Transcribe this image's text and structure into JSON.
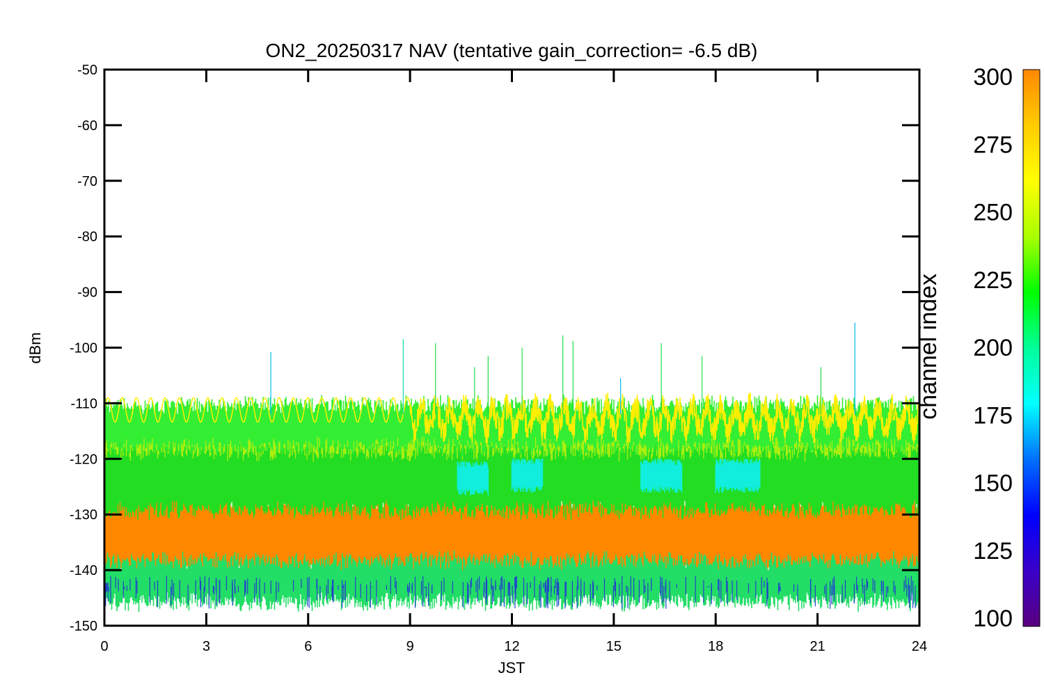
{
  "chart_data": {
    "type": "line",
    "title": "ON2_20250317 NAV (tentative gain_correction= -6.5 dB)",
    "xlabel": "JST",
    "ylabel": "dBm",
    "xlim": [
      0,
      24
    ],
    "ylim": [
      -150,
      -50
    ],
    "xticks": [
      0,
      3,
      6,
      9,
      12,
      15,
      18,
      21,
      24
    ],
    "xtick_labels": [
      "0",
      "3",
      "6",
      "9",
      "12",
      "15",
      "18",
      "21",
      "24"
    ],
    "yticks": [
      -50,
      -60,
      -70,
      -80,
      -90,
      -100,
      -110,
      -120,
      -130,
      -140,
      -150
    ],
    "ytick_labels": [
      "-50",
      "-60",
      "-70",
      "-80",
      "-90",
      "-100",
      "-110",
      "-120",
      "-130",
      "-140",
      "-150"
    ],
    "colorbar": {
      "label": "channel index",
      "range": [
        100,
        300
      ],
      "ticks": [
        300,
        275,
        250,
        225,
        200,
        175,
        150,
        125,
        100
      ],
      "tick_labels": [
        "300",
        "275",
        "250",
        "225",
        "200",
        "175",
        "150",
        "125",
        "100"
      ],
      "colormap": [
        "#5a0080",
        "#3a00c8",
        "#0000ff",
        "#0070ff",
        "#00ffff",
        "#00ff99",
        "#00ff00",
        "#aaff00",
        "#ffff00",
        "#ffcc00",
        "#ff8800"
      ]
    },
    "bands": [
      {
        "name": "orange",
        "channel_index": 300,
        "center": -134,
        "half_width": 5.5,
        "color": "#ff8800"
      },
      {
        "name": "yellow-green",
        "channel_index": 255,
        "center": -118.5,
        "half_width": 4.5,
        "color": "#aaee10"
      },
      {
        "name": "green",
        "channel_index": 235,
        "center": -124,
        "half_width": 4,
        "color": "#22dd22"
      },
      {
        "name": "upper-green",
        "channel_index": 240,
        "center": -114,
        "half_width": 2.5,
        "color": "#33ee33"
      },
      {
        "name": "lower-edge",
        "channel_index": 210,
        "center": -142,
        "half_width": 2.5,
        "color": "#22dd66"
      }
    ],
    "cyan_patches": [
      {
        "x_start": 10.4,
        "x_end": 11.3,
        "y_center": -123.5,
        "color": "#11eedd"
      },
      {
        "x_start": 12.0,
        "x_end": 12.9,
        "y_center": -123,
        "color": "#11eedd"
      },
      {
        "x_start": 15.8,
        "x_end": 17.0,
        "y_center": -123,
        "color": "#11eedd"
      },
      {
        "x_start": 18.0,
        "x_end": 19.3,
        "y_center": -123,
        "color": "#11eedd"
      }
    ],
    "yellow_wave": {
      "y_center": -111.2,
      "amplitude": 2.2,
      "period_hours": 0.42,
      "x_end_clean": 9.0,
      "color": "#ffee00"
    },
    "spikes": [
      {
        "x": 4.9,
        "y": -100.8,
        "color": "#00bbee"
      },
      {
        "x": 8.8,
        "y": -98.5,
        "color": "#11ddaa"
      },
      {
        "x": 9.75,
        "y": -99.2,
        "color": "#22dd44"
      },
      {
        "x": 10.9,
        "y": -103.5,
        "color": "#22dd44"
      },
      {
        "x": 11.3,
        "y": -101.5,
        "color": "#22dd44"
      },
      {
        "x": 12.3,
        "y": -100,
        "color": "#22dd44"
      },
      {
        "x": 13.5,
        "y": -97.8,
        "color": "#22dd44"
      },
      {
        "x": 13.8,
        "y": -98.8,
        "color": "#22dd44"
      },
      {
        "x": 15.2,
        "y": -105.5,
        "color": "#00bbee"
      },
      {
        "x": 16.4,
        "y": -99.2,
        "color": "#22dd44"
      },
      {
        "x": 17.6,
        "y": -101.5,
        "color": "#22dd44"
      },
      {
        "x": 21.1,
        "y": -103.5,
        "color": "#22dd44"
      },
      {
        "x": 22.1,
        "y": -95.5,
        "color": "#00bbee"
      }
    ],
    "grid": false,
    "legend": "none"
  }
}
